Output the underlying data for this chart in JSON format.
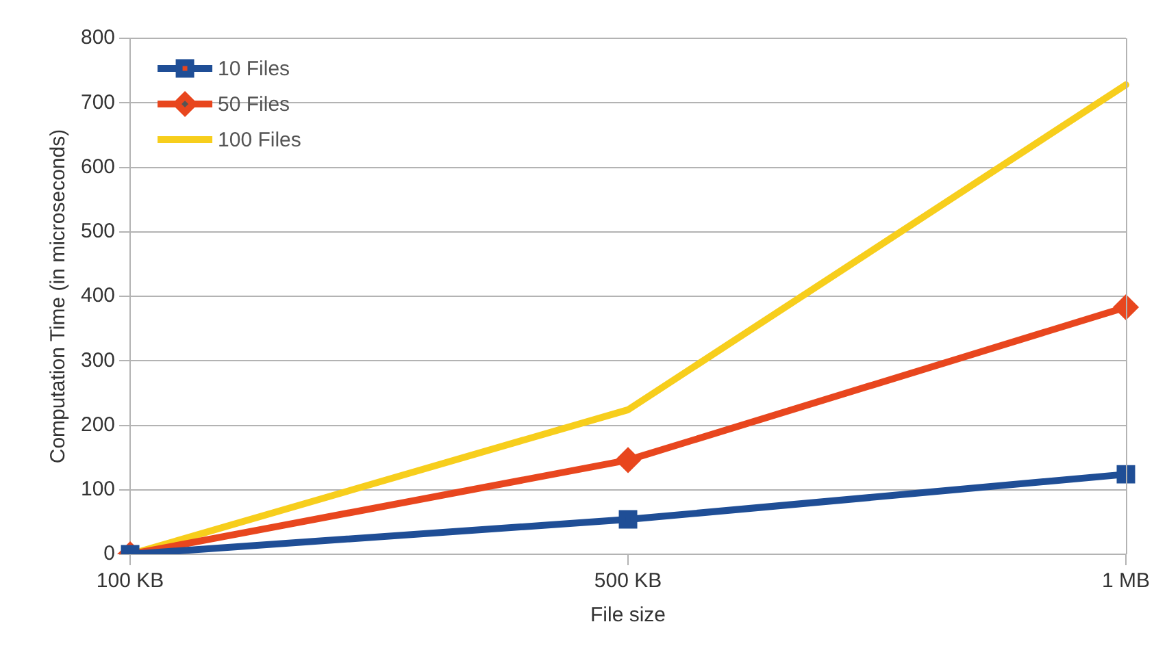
{
  "chart_data": {
    "type": "line",
    "xlabel": "File size",
    "ylabel": "Computation Time (in microseconds)",
    "categories": [
      "100 KB",
      "500 KB",
      "1 MB"
    ],
    "series": [
      {
        "name": "10 Files",
        "color": "#1f4e96",
        "marker": "square",
        "values": [
          0,
          54,
          124
        ]
      },
      {
        "name": "50 Files",
        "color": "#e8461e",
        "marker": "diamond",
        "values": [
          0,
          146,
          383
        ]
      },
      {
        "name": "100 Files",
        "color": "#f7ce1c",
        "marker": "none",
        "values": [
          0,
          224,
          728
        ]
      }
    ],
    "ylim": [
      0,
      800
    ],
    "yticks": [
      0,
      100,
      200,
      300,
      400,
      500,
      600,
      700,
      800
    ],
    "grid": "y",
    "legend": "top left",
    "line_style": "solid"
  }
}
